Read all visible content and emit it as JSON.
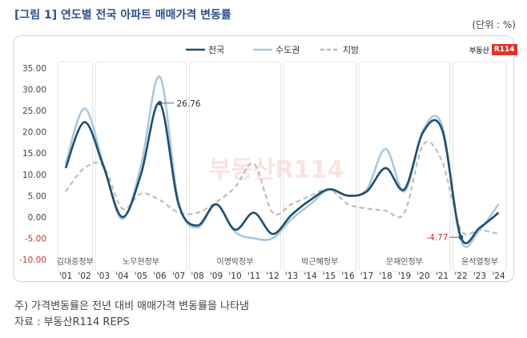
{
  "title": "[그림 1] 연도별 전국 아파트 매매가격 변동률",
  "unit": "(단위 : %)",
  "logo": {
    "text": "부동산",
    "mark": "R114",
    "watermark": "부동산R114"
  },
  "notes": [
    "주) 가격변동률은 전년 대비 매매가격 변동률을 나타냄",
    "자료 : 부동산R114 REPS"
  ],
  "colors": {
    "전국": "#1f4e6e",
    "수도권": "#a9c8de",
    "지방": "#bdbdbd",
    "band": "#e3e3e3",
    "min_label": "#c0392b"
  },
  "chart_data": {
    "type": "line",
    "categories": [
      "'01",
      "'02",
      "'03",
      "'04",
      "'05",
      "'06",
      "'07",
      "'08",
      "'09",
      "'10",
      "'11",
      "'12",
      "'13",
      "'14",
      "'15",
      "'16",
      "'17",
      "'18",
      "'19",
      "'20",
      "'21",
      "'22",
      "'23",
      "'24"
    ],
    "ylim": [
      -10,
      35
    ],
    "yticks": [
      "35.00",
      "30.00",
      "25.00",
      "20.00",
      "15.00",
      "10.00",
      "5.00",
      "0.00",
      "-5.00",
      "-10.00"
    ],
    "legend_position": "top-center",
    "series": [
      {
        "name": "전국",
        "style": "solid",
        "values": [
          11.5,
          22.3,
          12.0,
          0.0,
          10.0,
          26.76,
          3.0,
          -2.0,
          3.0,
          -3.0,
          1.0,
          -4.0,
          0.5,
          4.0,
          6.5,
          5.0,
          6.0,
          11.5,
          6.5,
          20.0,
          20.5,
          -4.77,
          -2.5,
          1.0
        ]
      },
      {
        "name": "수도권",
        "style": "solid",
        "values": [
          12.5,
          25.5,
          12.5,
          -0.5,
          12.0,
          33.0,
          3.5,
          -2.5,
          3.0,
          -3.5,
          -5.0,
          -5.0,
          -0.5,
          3.0,
          6.5,
          5.0,
          6.5,
          16.0,
          6.0,
          20.5,
          21.5,
          -5.5,
          -3.0,
          3.0
        ]
      },
      {
        "name": "지방",
        "style": "dashed",
        "values": [
          6.0,
          11.5,
          12.0,
          2.0,
          5.5,
          4.0,
          1.0,
          1.0,
          3.5,
          7.0,
          12.5,
          1.0,
          3.0,
          5.0,
          6.5,
          3.0,
          2.0,
          1.5,
          1.0,
          17.0,
          13.0,
          -3.0,
          -3.0,
          -4.0
        ]
      }
    ],
    "bands": [
      {
        "label": "김대중정부",
        "from": 0,
        "to": 1
      },
      {
        "label": "노무현정부",
        "from": 2,
        "to": 6
      },
      {
        "label": "이명박정부",
        "from": 7,
        "to": 11
      },
      {
        "label": "박근혜정부",
        "from": 12,
        "to": 15
      },
      {
        "label": "문재인정부",
        "from": 16,
        "to": 20
      },
      {
        "label": "윤석열정부",
        "from": 21,
        "to": 23
      }
    ],
    "annotations": [
      {
        "series": "전국",
        "index": 5,
        "text": "26.76"
      },
      {
        "series": "전국",
        "index": 21,
        "text": "-4.77"
      }
    ]
  }
}
